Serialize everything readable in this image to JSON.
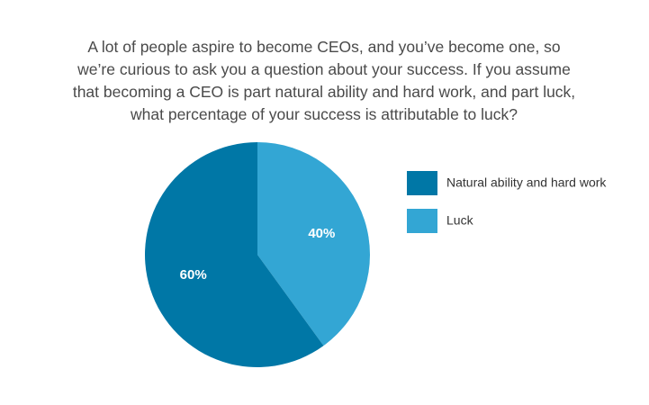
{
  "chart_data": {
    "type": "pie",
    "title": "A lot of people aspire to become CEOs, and you’ve become one, so we’re curious to ask you a question about your success. If you assume that becoming a CEO is part natural ability and hard work, and part luck, what percentage of your success is attributable to luck?",
    "categories": [
      "Natural ability and hard work",
      "Luck"
    ],
    "values": [
      60,
      40
    ],
    "value_labels": [
      "60%",
      "40%"
    ],
    "colors": [
      "#0077a6",
      "#33a6d4"
    ]
  }
}
